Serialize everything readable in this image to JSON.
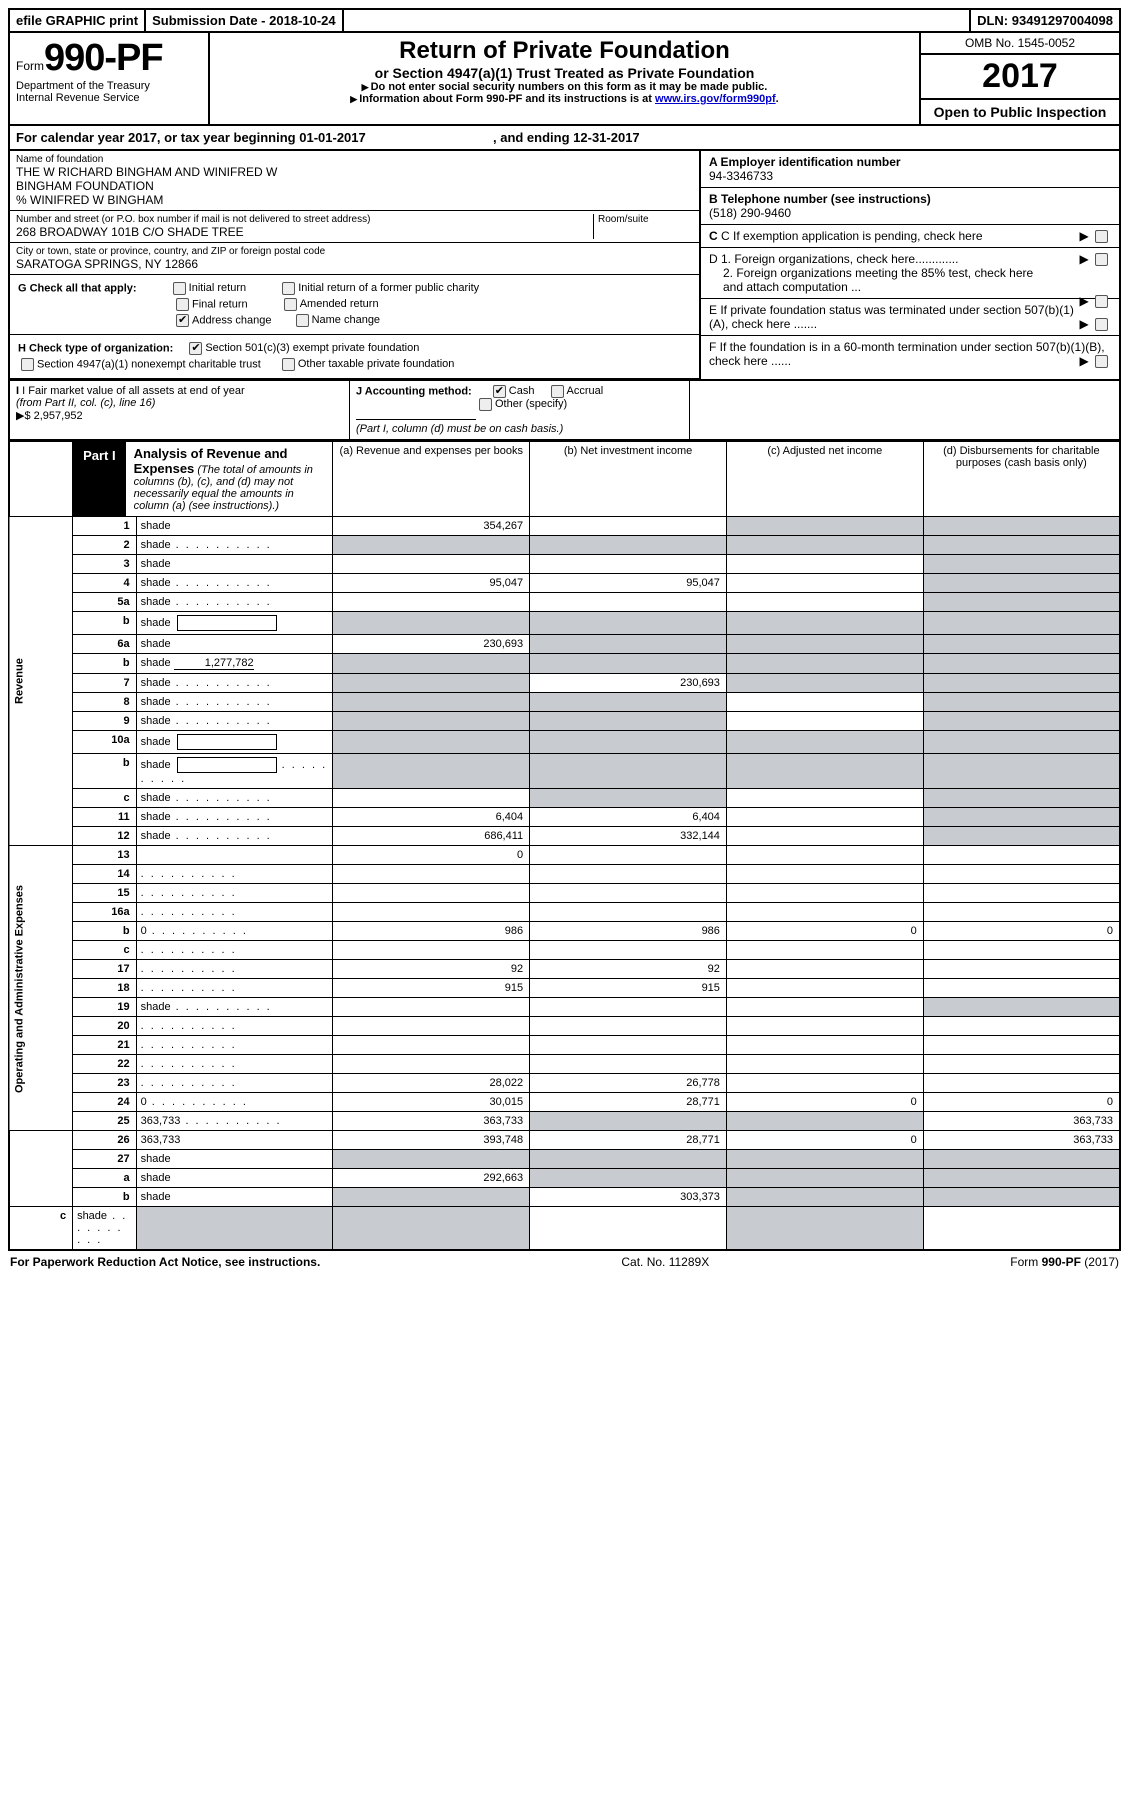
{
  "topbar": {
    "efile": "efile GRAPHIC print",
    "submission_label": "Submission Date - ",
    "submission_date": "2018-10-24",
    "dln_label": "DLN: ",
    "dln": "93491297004098"
  },
  "header": {
    "form_prefix": "Form",
    "form_number": "990-PF",
    "dept": "Department of the Treasury",
    "irs": "Internal Revenue Service",
    "title": "Return of Private Foundation",
    "subtitle": "or Section 4947(a)(1) Trust Treated as Private Foundation",
    "warn1": "Do not enter social security numbers on this form as it may be made public.",
    "warn2_pre": "Information about Form 990-PF and its instructions is at ",
    "warn2_link": "www.irs.gov/form990pf",
    "omb": "OMB No. 1545-0052",
    "year": "2017",
    "open": "Open to Public Inspection"
  },
  "calyear": {
    "prefix": "For calendar year 2017, or tax year beginning ",
    "begin": "01-01-2017",
    "mid": " , and ending ",
    "end": "12-31-2017"
  },
  "info": {
    "name_label": "Name of foundation",
    "name1": "THE W RICHARD BINGHAM AND WINIFRED W",
    "name2": "BINGHAM FOUNDATION",
    "name3": "% WINIFRED W BINGHAM",
    "addr_label": "Number and street (or P.O. box number if mail is not delivered to street address)",
    "room_label": "Room/suite",
    "addr": "268 BROADWAY 101B C/O SHADE TREE",
    "city_label": "City or town, state or province, country, and ZIP or foreign postal code",
    "city": "SARATOGA SPRINGS, NY  12866",
    "a_label": "A Employer identification number",
    "a_val": "94-3346733",
    "b_label": "B Telephone number (see instructions)",
    "b_val": "(518) 290-9460",
    "c_label": "C If exemption application is pending, check here",
    "d1": "D 1. Foreign organizations, check here.............",
    "d2": "2. Foreign organizations meeting the 85% test, check here and attach computation ...",
    "e": "E  If private foundation status was terminated under section 507(b)(1)(A), check here .......",
    "f": "F  If the foundation is in a 60-month termination under section 507(b)(1)(B), check here ......"
  },
  "g": {
    "label": "G Check all that apply:",
    "opts": [
      "Initial return",
      "Initial return of a former public charity",
      "Final return",
      "Amended return",
      "Address change",
      "Name change"
    ],
    "checked_index": 4
  },
  "h": {
    "label": "H Check type of organization:",
    "opt1": "Section 501(c)(3) exempt private foundation",
    "opt2": "Section 4947(a)(1) nonexempt charitable trust",
    "opt3": "Other taxable private foundation"
  },
  "i": {
    "label": "I Fair market value of all assets at end of year ",
    "sub": "(from Part II, col. (c), line 16)",
    "arrow": "▶$",
    "val": "  2,957,952"
  },
  "j": {
    "label": "J Accounting method:",
    "cash": "Cash",
    "accrual": "Accrual",
    "other": "Other (specify)",
    "note": "(Part I, column (d) must be on cash basis.)"
  },
  "part1": {
    "label": "Part I",
    "title": "Analysis of Revenue and Expenses",
    "sub": " (The total of amounts in columns (b), (c), and (d) may not necessarily equal the amounts in column (a) (see instructions).)",
    "col_a": "(a)   Revenue and expenses per books",
    "col_b": "(b)  Net investment income",
    "col_c": "(c)  Adjusted net income",
    "col_d": "(d)  Disbursements for charitable purposes (cash basis only)"
  },
  "vlabels": {
    "revenue": "Revenue",
    "expenses": "Operating and Administrative Expenses"
  },
  "rows": [
    {
      "n": "1",
      "d": "shade",
      "a": "354,267",
      "b": "",
      "c": "shade"
    },
    {
      "n": "2",
      "d": "shade",
      "dots": true,
      "a": "shade",
      "b": "shade",
      "c": "shade"
    },
    {
      "n": "3",
      "d": "shade",
      "a": "",
      "b": "",
      "c": ""
    },
    {
      "n": "4",
      "d": "shade",
      "dots": true,
      "a": "95,047",
      "b": "95,047",
      "c": ""
    },
    {
      "n": "5a",
      "d": "shade",
      "dots": true,
      "a": "",
      "b": "",
      "c": ""
    },
    {
      "n": "b",
      "d": "shade",
      "box": true,
      "a": "shade",
      "b": "shade",
      "c": "shade"
    },
    {
      "n": "6a",
      "d": "shade",
      "a": "230,693",
      "b": "shade",
      "c": "shade"
    },
    {
      "n": "b",
      "d": "shade",
      "uval": "1,277,782",
      "a": "shade",
      "b": "shade",
      "c": "shade"
    },
    {
      "n": "7",
      "d": "shade",
      "dots": true,
      "a": "shade",
      "b": "230,693",
      "c": "shade"
    },
    {
      "n": "8",
      "d": "shade",
      "dots": true,
      "a": "shade",
      "b": "shade",
      "c": ""
    },
    {
      "n": "9",
      "d": "shade",
      "dots": true,
      "a": "shade",
      "b": "shade",
      "c": ""
    },
    {
      "n": "10a",
      "d": "shade",
      "box": true,
      "a": "shade",
      "b": "shade",
      "c": "shade"
    },
    {
      "n": "b",
      "d": "shade",
      "dots": true,
      "box": true,
      "a": "shade",
      "b": "shade",
      "c": "shade"
    },
    {
      "n": "c",
      "d": "shade",
      "dots": true,
      "a": "",
      "b": "shade",
      "c": ""
    },
    {
      "n": "11",
      "d": "shade",
      "dots": true,
      "a": "6,404",
      "b": "6,404",
      "c": ""
    },
    {
      "n": "12",
      "d": "shade",
      "dots": true,
      "a": "686,411",
      "b": "332,144",
      "c": ""
    },
    {
      "n": "13",
      "d": "",
      "a": "0",
      "b": "",
      "c": ""
    },
    {
      "n": "14",
      "d": "",
      "dots": true,
      "a": "",
      "b": "",
      "c": ""
    },
    {
      "n": "15",
      "d": "",
      "dots": true,
      "a": "",
      "b": "",
      "c": ""
    },
    {
      "n": "16a",
      "d": "",
      "dots": true,
      "a": "",
      "b": "",
      "c": ""
    },
    {
      "n": "b",
      "d": "0",
      "dots": true,
      "a": "986",
      "b": "986",
      "c": "0"
    },
    {
      "n": "c",
      "d": "",
      "dots": true,
      "a": "",
      "b": "",
      "c": ""
    },
    {
      "n": "17",
      "d": "",
      "dots": true,
      "a": "92",
      "b": "92",
      "c": ""
    },
    {
      "n": "18",
      "d": "",
      "dots": true,
      "a": "915",
      "b": "915",
      "c": ""
    },
    {
      "n": "19",
      "d": "shade",
      "dots": true,
      "a": "",
      "b": "",
      "c": ""
    },
    {
      "n": "20",
      "d": "",
      "dots": true,
      "a": "",
      "b": "",
      "c": ""
    },
    {
      "n": "21",
      "d": "",
      "dots": true,
      "a": "",
      "b": "",
      "c": ""
    },
    {
      "n": "22",
      "d": "",
      "dots": true,
      "a": "",
      "b": "",
      "c": ""
    },
    {
      "n": "23",
      "d": "",
      "dots": true,
      "a": "28,022",
      "b": "26,778",
      "c": ""
    },
    {
      "n": "24",
      "d": "0",
      "dots": true,
      "a": "30,015",
      "b": "28,771",
      "c": "0"
    },
    {
      "n": "25",
      "d": "363,733",
      "dots": true,
      "a": "363,733",
      "b": "shade",
      "c": "shade"
    },
    {
      "n": "26",
      "d": "363,733",
      "a": "393,748",
      "b": "28,771",
      "c": "0"
    },
    {
      "n": "27",
      "d": "shade",
      "a": "shade",
      "b": "shade",
      "c": "shade"
    },
    {
      "n": "a",
      "d": "shade",
      "a": "292,663",
      "b": "shade",
      "c": "shade"
    },
    {
      "n": "b",
      "d": "shade",
      "a": "shade",
      "b": "303,373",
      "c": "shade"
    },
    {
      "n": "c",
      "d": "shade",
      "dots": true,
      "a": "shade",
      "b": "shade",
      "c": ""
    }
  ],
  "footer": {
    "left": "For Paperwork Reduction Act Notice, see instructions.",
    "mid": "Cat. No. 11289X",
    "right_pre": "Form ",
    "right_form": "990-PF",
    "right_post": " (2017)"
  }
}
